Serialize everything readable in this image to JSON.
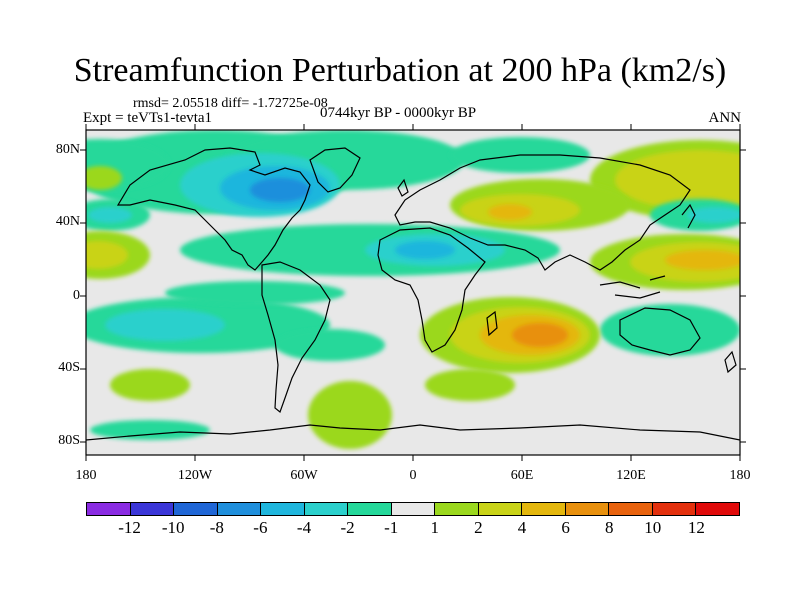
{
  "title": "Streamfunction Perturbation at 200 hPa (km2/s)",
  "stats": "rmsd= 2.05518  diff= -1.72725e-08",
  "experiment": "Expt = teVTs1-tevta1",
  "period": "0744kyr BP - 0000kyr BP",
  "season": "ANN",
  "lat_labels": [
    "80N",
    "40N",
    "0",
    "40S",
    "80S"
  ],
  "lon_labels": [
    "180",
    "120W",
    "60W",
    "0",
    "60E",
    "120E",
    "180"
  ],
  "colorbar": {
    "labels": [
      "-12",
      "-10",
      "-8",
      "-6",
      "-4",
      "-2",
      "-1",
      "1",
      "2",
      "4",
      "6",
      "8",
      "10",
      "12"
    ],
    "colors": [
      "#8a2be2",
      "#3b36d8",
      "#1f66d6",
      "#1f8fdc",
      "#1fb6dd",
      "#2bd0cc",
      "#25d89a",
      "#e8e8e8",
      "#9bd81e",
      "#c9d318",
      "#e4b70d",
      "#e8900d",
      "#e8620d",
      "#e3300d",
      "#e00a0a"
    ]
  },
  "field_colors": {
    "neutral": "#e8e8e8",
    "neg1": "#25d89a",
    "neg2": "#2bd0cc",
    "neg4": "#1fb6dd",
    "neg6": "#1f8fdc",
    "pos1": "#9bd81e",
    "pos2": "#c9d318",
    "pos4": "#e4b70d",
    "pos6": "#e8900d"
  }
}
